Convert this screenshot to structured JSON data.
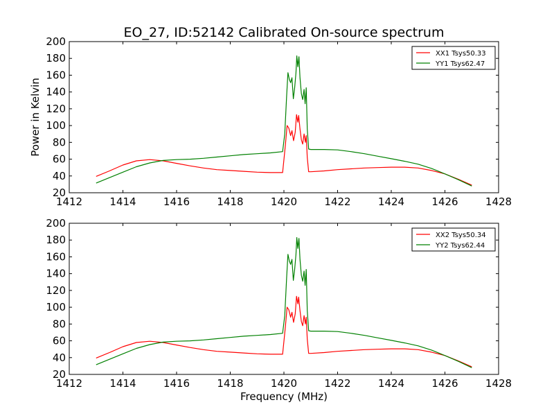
{
  "figure": {
    "title": "EO_27, ID:52142 Calibrated On-source spectrum"
  },
  "chart_data": [
    {
      "type": "line",
      "title": "EO_27, ID:52142 Calibrated On-source spectrum",
      "xlabel": "",
      "ylabel": "Power in Kelvin",
      "xlim": [
        1412,
        1428
      ],
      "ylim": [
        20,
        200
      ],
      "xticks": [
        1412,
        1414,
        1416,
        1418,
        1420,
        1422,
        1424,
        1426,
        1428
      ],
      "yticks": [
        20,
        40,
        60,
        80,
        100,
        120,
        140,
        160,
        180,
        200
      ],
      "grid": false,
      "legend_position": "top-right",
      "series": [
        {
          "name": "XX1 Tsys50.33",
          "color": "#ff0000",
          "points": [
            [
              1413.0,
              39.5
            ],
            [
              1413.5,
              46
            ],
            [
              1414.0,
              53
            ],
            [
              1414.5,
              58
            ],
            [
              1415.0,
              59.5
            ],
            [
              1415.5,
              58
            ],
            [
              1416.0,
              55
            ],
            [
              1416.5,
              52
            ],
            [
              1417.0,
              49.5
            ],
            [
              1417.5,
              47.5
            ],
            [
              1418.0,
              46.5
            ],
            [
              1418.5,
              45.5
            ],
            [
              1419.0,
              44.5
            ],
            [
              1419.5,
              44
            ],
            [
              1419.95,
              44
            ],
            [
              1420.05,
              75
            ],
            [
              1420.12,
              100
            ],
            [
              1420.18,
              97
            ],
            [
              1420.25,
              88
            ],
            [
              1420.3,
              94
            ],
            [
              1420.36,
              82
            ],
            [
              1420.42,
              92
            ],
            [
              1420.47,
              113
            ],
            [
              1420.52,
              104
            ],
            [
              1420.55,
              112
            ],
            [
              1420.6,
              96
            ],
            [
              1420.65,
              83
            ],
            [
              1420.7,
              78
            ],
            [
              1420.75,
              90
            ],
            [
              1420.8,
              80
            ],
            [
              1420.83,
              88
            ],
            [
              1420.87,
              62
            ],
            [
              1420.92,
              45
            ],
            [
              1421.0,
              45
            ],
            [
              1421.5,
              46
            ],
            [
              1422.0,
              47.5
            ],
            [
              1422.5,
              48.5
            ],
            [
              1423.0,
              49.5
            ],
            [
              1423.5,
              50
            ],
            [
              1424.0,
              50.5
            ],
            [
              1424.5,
              50.5
            ],
            [
              1425.0,
              49.5
            ],
            [
              1425.5,
              46.5
            ],
            [
              1426.0,
              42.5
            ],
            [
              1426.5,
              36
            ],
            [
              1427.0,
              29
            ]
          ]
        },
        {
          "name": "YY1 Tsys62.47",
          "color": "#008000",
          "points": [
            [
              1413.0,
              31.5
            ],
            [
              1413.5,
              38
            ],
            [
              1414.0,
              44.5
            ],
            [
              1414.5,
              51
            ],
            [
              1415.0,
              55.5
            ],
            [
              1415.5,
              58.5
            ],
            [
              1416.0,
              59.5
            ],
            [
              1416.5,
              60
            ],
            [
              1417.0,
              61
            ],
            [
              1417.5,
              62.5
            ],
            [
              1418.0,
              64
            ],
            [
              1418.5,
              65.5
            ],
            [
              1419.0,
              66.5
            ],
            [
              1419.5,
              67.5
            ],
            [
              1419.95,
              69
            ],
            [
              1420.03,
              90
            ],
            [
              1420.1,
              135
            ],
            [
              1420.15,
              163
            ],
            [
              1420.2,
              155
            ],
            [
              1420.25,
              151
            ],
            [
              1420.3,
              157
            ],
            [
              1420.35,
              132
            ],
            [
              1420.4,
              145
            ],
            [
              1420.45,
              163
            ],
            [
              1420.48,
              183
            ],
            [
              1420.52,
              170
            ],
            [
              1420.56,
              182
            ],
            [
              1420.6,
              157
            ],
            [
              1420.65,
              138
            ],
            [
              1420.7,
              131
            ],
            [
              1420.75,
              143
            ],
            [
              1420.79,
              126
            ],
            [
              1420.83,
              145
            ],
            [
              1420.87,
              96
            ],
            [
              1420.92,
              72
            ],
            [
              1421.0,
              71.5
            ],
            [
              1421.5,
              71.5
            ],
            [
              1422.0,
              71
            ],
            [
              1422.5,
              69
            ],
            [
              1423.0,
              66.5
            ],
            [
              1423.5,
              63.5
            ],
            [
              1424.0,
              60.5
            ],
            [
              1424.5,
              57.5
            ],
            [
              1425.0,
              54
            ],
            [
              1425.5,
              49
            ],
            [
              1426.0,
              42.5
            ],
            [
              1426.5,
              35.5
            ],
            [
              1427.0,
              28
            ]
          ]
        }
      ]
    },
    {
      "type": "line",
      "title": "",
      "xlabel": "Frequency (MHz)",
      "ylabel": "",
      "xlim": [
        1412,
        1428
      ],
      "ylim": [
        20,
        200
      ],
      "xticks": [
        1412,
        1414,
        1416,
        1418,
        1420,
        1422,
        1424,
        1426,
        1428
      ],
      "yticks": [
        20,
        40,
        60,
        80,
        100,
        120,
        140,
        160,
        180,
        200
      ],
      "grid": false,
      "legend_position": "top-right",
      "series": [
        {
          "name": "XX2 Tsys50.34",
          "color": "#ff0000",
          "points": [
            [
              1413.0,
              39.5
            ],
            [
              1413.5,
              46
            ],
            [
              1414.0,
              53
            ],
            [
              1414.5,
              58
            ],
            [
              1415.0,
              59.5
            ],
            [
              1415.5,
              58
            ],
            [
              1416.0,
              55
            ],
            [
              1416.5,
              52
            ],
            [
              1417.0,
              49.5
            ],
            [
              1417.5,
              47.5
            ],
            [
              1418.0,
              46.5
            ],
            [
              1418.5,
              45.5
            ],
            [
              1419.0,
              44.5
            ],
            [
              1419.5,
              44
            ],
            [
              1419.95,
              44
            ],
            [
              1420.05,
              75
            ],
            [
              1420.12,
              100
            ],
            [
              1420.18,
              97
            ],
            [
              1420.25,
              88
            ],
            [
              1420.3,
              94
            ],
            [
              1420.36,
              82
            ],
            [
              1420.42,
              92
            ],
            [
              1420.47,
              113
            ],
            [
              1420.52,
              104
            ],
            [
              1420.55,
              112
            ],
            [
              1420.6,
              96
            ],
            [
              1420.65,
              83
            ],
            [
              1420.7,
              78
            ],
            [
              1420.75,
              90
            ],
            [
              1420.8,
              80
            ],
            [
              1420.83,
              88
            ],
            [
              1420.87,
              62
            ],
            [
              1420.92,
              45
            ],
            [
              1421.0,
              45
            ],
            [
              1421.5,
              46
            ],
            [
              1422.0,
              47.5
            ],
            [
              1422.5,
              48.5
            ],
            [
              1423.0,
              49.5
            ],
            [
              1423.5,
              50
            ],
            [
              1424.0,
              50.5
            ],
            [
              1424.5,
              50.5
            ],
            [
              1425.0,
              49.5
            ],
            [
              1425.5,
              46.5
            ],
            [
              1426.0,
              42.5
            ],
            [
              1426.5,
              36
            ],
            [
              1427.0,
              29
            ]
          ]
        },
        {
          "name": "YY2 Tsys62.44",
          "color": "#008000",
          "points": [
            [
              1413.0,
              31.5
            ],
            [
              1413.5,
              38
            ],
            [
              1414.0,
              44.5
            ],
            [
              1414.5,
              51
            ],
            [
              1415.0,
              55.5
            ],
            [
              1415.5,
              58.5
            ],
            [
              1416.0,
              59.5
            ],
            [
              1416.5,
              60
            ],
            [
              1417.0,
              61
            ],
            [
              1417.5,
              62.5
            ],
            [
              1418.0,
              64
            ],
            [
              1418.5,
              65.5
            ],
            [
              1419.0,
              66.5
            ],
            [
              1419.5,
              67.5
            ],
            [
              1419.95,
              69
            ],
            [
              1420.03,
              90
            ],
            [
              1420.1,
              135
            ],
            [
              1420.15,
              163
            ],
            [
              1420.2,
              155
            ],
            [
              1420.25,
              151
            ],
            [
              1420.3,
              157
            ],
            [
              1420.35,
              132
            ],
            [
              1420.4,
              145
            ],
            [
              1420.45,
              163
            ],
            [
              1420.48,
              183
            ],
            [
              1420.52,
              170
            ],
            [
              1420.56,
              182
            ],
            [
              1420.6,
              157
            ],
            [
              1420.65,
              138
            ],
            [
              1420.7,
              131
            ],
            [
              1420.75,
              143
            ],
            [
              1420.79,
              126
            ],
            [
              1420.83,
              145
            ],
            [
              1420.87,
              96
            ],
            [
              1420.92,
              72
            ],
            [
              1421.0,
              71.5
            ],
            [
              1421.5,
              71.5
            ],
            [
              1422.0,
              71
            ],
            [
              1422.5,
              69
            ],
            [
              1423.0,
              66.5
            ],
            [
              1423.5,
              63.5
            ],
            [
              1424.0,
              60.5
            ],
            [
              1424.5,
              57.5
            ],
            [
              1425.0,
              54
            ],
            [
              1425.5,
              49
            ],
            [
              1426.0,
              42.5
            ],
            [
              1426.5,
              35.5
            ],
            [
              1427.0,
              28
            ]
          ]
        }
      ]
    }
  ]
}
